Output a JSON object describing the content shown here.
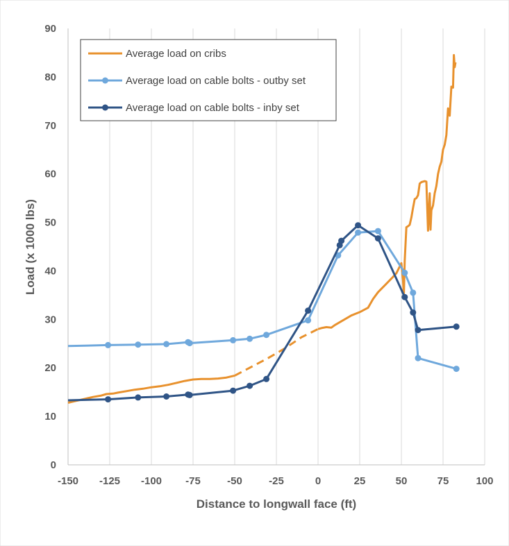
{
  "chart_data": {
    "type": "line",
    "xlabel": "Distance to longwall face (ft)",
    "ylabel": "Load (x 1000 lbs)",
    "xlim": [
      -150,
      100
    ],
    "ylim": [
      0,
      90
    ],
    "xticks": [
      -150,
      -125,
      -100,
      -75,
      -50,
      -25,
      0,
      25,
      50,
      75,
      100
    ],
    "yticks": [
      0,
      10,
      20,
      30,
      40,
      50,
      60,
      70,
      80,
      90
    ],
    "grid": "vertical",
    "legend_position": "top-left",
    "series": [
      {
        "name": "Average load on cribs",
        "color": "#E8912D",
        "marker": "none",
        "dashed_range": [
          -50,
          0
        ],
        "points": [
          [
            -150,
            12.8
          ],
          [
            -145,
            13.2
          ],
          [
            -140,
            13.6
          ],
          [
            -135,
            14.0
          ],
          [
            -130,
            14.3
          ],
          [
            -127,
            14.6
          ],
          [
            -123,
            14.7
          ],
          [
            -120,
            14.9
          ],
          [
            -115,
            15.2
          ],
          [
            -110,
            15.5
          ],
          [
            -105,
            15.7
          ],
          [
            -100,
            16.0
          ],
          [
            -95,
            16.2
          ],
          [
            -90,
            16.5
          ],
          [
            -85,
            16.9
          ],
          [
            -80,
            17.3
          ],
          [
            -75,
            17.6
          ],
          [
            -70,
            17.7
          ],
          [
            -65,
            17.7
          ],
          [
            -60,
            17.8
          ],
          [
            -55,
            18.0
          ],
          [
            -50,
            18.4
          ],
          [
            -40,
            20.2
          ],
          [
            -30,
            22.0
          ],
          [
            -20,
            24.0
          ],
          [
            -10,
            26.3
          ],
          [
            0,
            28.0
          ],
          [
            2,
            28.2
          ],
          [
            5,
            28.4
          ],
          [
            8,
            28.3
          ],
          [
            10,
            28.8
          ],
          [
            15,
            29.8
          ],
          [
            20,
            30.8
          ],
          [
            25,
            31.5
          ],
          [
            30,
            32.4
          ],
          [
            33,
            34.2
          ],
          [
            36,
            35.6
          ],
          [
            40,
            37.0
          ],
          [
            44,
            38.4
          ],
          [
            47,
            39.5
          ],
          [
            50,
            41.6
          ],
          [
            51,
            38.0
          ],
          [
            51.5,
            35.0
          ],
          [
            52,
            42.0
          ],
          [
            53,
            49.0
          ],
          [
            54,
            49.2
          ],
          [
            55,
            49.5
          ],
          [
            56,
            51.0
          ],
          [
            57,
            53.0
          ],
          [
            58,
            54.8
          ],
          [
            59,
            55.0
          ],
          [
            60,
            55.6
          ],
          [
            61,
            58.0
          ],
          [
            62,
            58.3
          ],
          [
            63,
            58.4
          ],
          [
            64,
            58.5
          ],
          [
            65,
            58.4
          ],
          [
            66,
            48.3
          ],
          [
            67,
            56.0
          ],
          [
            67.5,
            48.5
          ],
          [
            68,
            52.5
          ],
          [
            69,
            53.5
          ],
          [
            70,
            56.0
          ],
          [
            71,
            57.5
          ],
          [
            72,
            60.0
          ],
          [
            73,
            61.5
          ],
          [
            74,
            62.5
          ],
          [
            75,
            65.0
          ],
          [
            76,
            66.0
          ],
          [
            77,
            68.0
          ],
          [
            78,
            73.5
          ],
          [
            79,
            72.0
          ],
          [
            80,
            78.0
          ],
          [
            81,
            77.8
          ],
          [
            81.5,
            84.5
          ],
          [
            82,
            82.0
          ],
          [
            82.5,
            83.0
          ]
        ]
      },
      {
        "name": "Average load on cable bolts - outby set",
        "color": "#6FA8DC",
        "marker": "circle",
        "points": [
          [
            -150,
            24.5
          ],
          [
            -126,
            24.7
          ],
          [
            -108,
            24.8
          ],
          [
            -91,
            24.9
          ],
          [
            -78,
            25.3
          ],
          [
            -77,
            25.1
          ],
          [
            -51,
            25.7
          ],
          [
            -41,
            26.0
          ],
          [
            -31,
            26.8
          ],
          [
            -6,
            29.8
          ],
          [
            12,
            43.2
          ],
          [
            24,
            47.9
          ],
          [
            36,
            48.2
          ],
          [
            52,
            39.6
          ],
          [
            57,
            35.5
          ],
          [
            60,
            22.0
          ],
          [
            83,
            19.8
          ]
        ]
      },
      {
        "name": "Average load on cable bolts - inby set",
        "color": "#2F5486",
        "marker": "circle",
        "points": [
          [
            -150,
            13.3
          ],
          [
            -126,
            13.5
          ],
          [
            -108,
            13.9
          ],
          [
            -91,
            14.1
          ],
          [
            -78,
            14.5
          ],
          [
            -77,
            14.4
          ],
          [
            -51,
            15.3
          ],
          [
            -41,
            16.3
          ],
          [
            -31,
            17.7
          ],
          [
            -6,
            31.8
          ],
          [
            13,
            45.3
          ],
          [
            14,
            46.2
          ],
          [
            24,
            49.4
          ],
          [
            36,
            46.7
          ],
          [
            52,
            34.6
          ],
          [
            57,
            31.4
          ],
          [
            60,
            27.8
          ],
          [
            83,
            28.5
          ]
        ]
      }
    ]
  }
}
